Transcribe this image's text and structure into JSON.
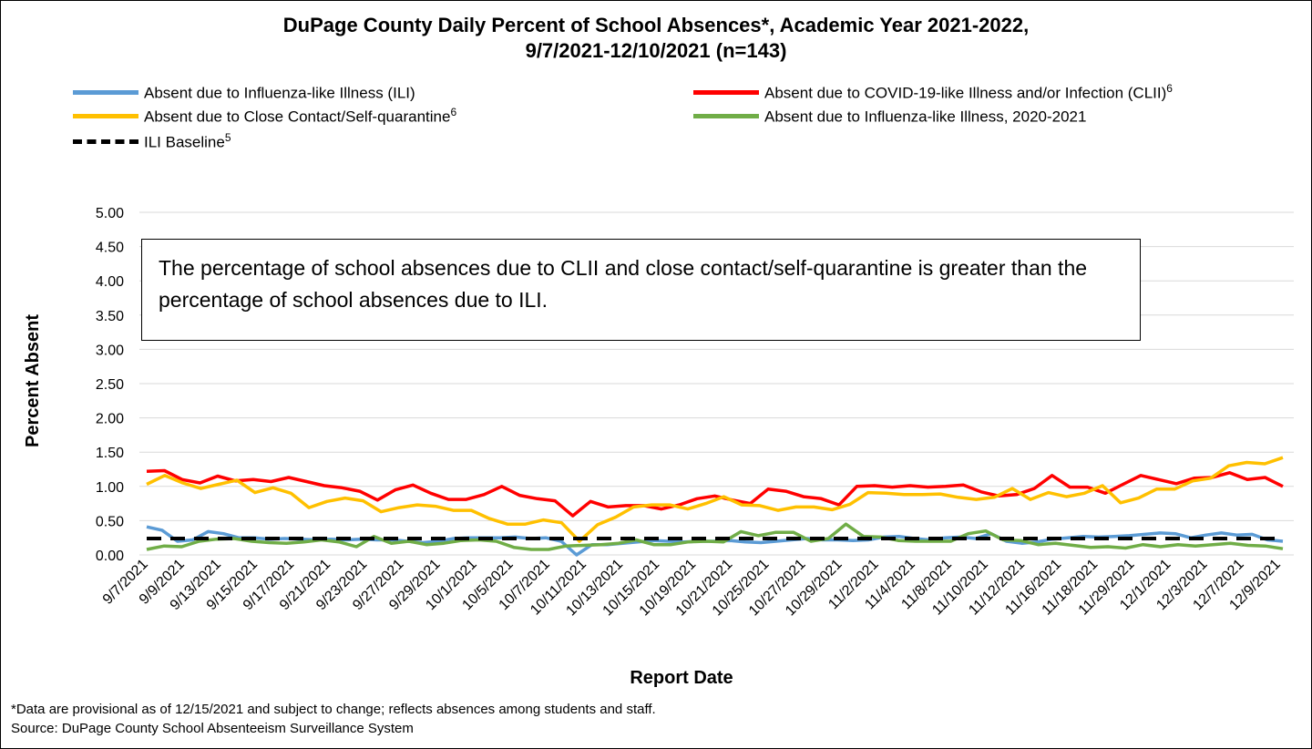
{
  "chart_data": {
    "type": "line",
    "title_line1": "DuPage County Daily Percent of School Absences*, Academic Year 2021-2022,",
    "title_line2": "9/7/2021-12/10/2021 (n=143)",
    "xlabel": "Report Date",
    "ylabel": "Percent Absent",
    "ylim": [
      0,
      5
    ],
    "y_ticks": [
      "0.00",
      "0.50",
      "1.00",
      "1.50",
      "2.00",
      "2.50",
      "3.00",
      "3.50",
      "4.00",
      "4.50",
      "5.00"
    ],
    "grid": true,
    "x_tick_labels": [
      "9/7/2021",
      "9/9/2021",
      "9/13/2021",
      "9/15/2021",
      "9/17/2021",
      "9/21/2021",
      "9/23/2021",
      "9/27/2021",
      "9/29/2021",
      "10/1/2021",
      "10/5/2021",
      "10/7/2021",
      "10/11/2021",
      "10/13/2021",
      "10/15/2021",
      "10/19/2021",
      "10/21/2021",
      "10/25/2021",
      "10/27/2021",
      "10/29/2021",
      "11/2/2021",
      "11/4/2021",
      "11/8/2021",
      "11/10/2021",
      "11/12/2021",
      "11/16/2021",
      "11/18/2021",
      "11/29/2021",
      "12/1/2021",
      "12/3/2021",
      "12/7/2021",
      "12/9/2021"
    ],
    "series": [
      {
        "name": "Absent due to Influenza-like Illness (ILI)",
        "superscript": "",
        "color": "#5b9bd5",
        "dash": false,
        "values": [
          0.41,
          0.36,
          0.2,
          0.22,
          0.34,
          0.31,
          0.25,
          0.25,
          0.23,
          0.24,
          0.23,
          0.22,
          0.23,
          0.22,
          0.23,
          0.22,
          0.22,
          0.2,
          0.18,
          0.2,
          0.24,
          0.25,
          0.25,
          0.25,
          0.26,
          0.24,
          0.25,
          0.2,
          0.0,
          0.15,
          0.15,
          0.17,
          0.19,
          0.21,
          0.2,
          0.19,
          0.2,
          0.2,
          0.21,
          0.19,
          0.18,
          0.2,
          0.22,
          0.24,
          0.22,
          0.22,
          0.21,
          0.22,
          0.26,
          0.27,
          0.24,
          0.22,
          0.25,
          0.26,
          0.24,
          0.31,
          0.2,
          0.17,
          0.19,
          0.23,
          0.25,
          0.27,
          0.26,
          0.27,
          0.28,
          0.3,
          0.32,
          0.31,
          0.25,
          0.29,
          0.32,
          0.29,
          0.3,
          0.22,
          0.2
        ]
      },
      {
        "name": "Absent due to COVID-19-like Illness and/or Infection (CLII)",
        "superscript": "6",
        "color": "#ff0000",
        "dash": false,
        "values": [
          1.22,
          1.23,
          1.1,
          1.05,
          1.15,
          1.08,
          1.1,
          1.07,
          1.13,
          1.07,
          1.01,
          0.98,
          0.93,
          0.8,
          0.95,
          1.02,
          0.9,
          0.81,
          0.81,
          0.88,
          1.0,
          0.87,
          0.82,
          0.79,
          0.57,
          0.78,
          0.7,
          0.72,
          0.72,
          0.67,
          0.73,
          0.82,
          0.86,
          0.8,
          0.75,
          0.96,
          0.93,
          0.85,
          0.82,
          0.73,
          1.0,
          1.01,
          0.99,
          1.01,
          0.99,
          1.0,
          1.02,
          0.92,
          0.86,
          0.88,
          0.97,
          1.16,
          0.99,
          0.99,
          0.9,
          1.03,
          1.16,
          1.1,
          1.04,
          1.12,
          1.13,
          1.2,
          1.1,
          1.13,
          1.0
        ]
      },
      {
        "name": "Absent due to Close Contact/Self-quarantine",
        "superscript": "6",
        "color": "#ffc000",
        "dash": false,
        "values": [
          1.03,
          1.16,
          1.05,
          0.97,
          1.03,
          1.09,
          0.91,
          0.98,
          0.9,
          0.69,
          0.78,
          0.83,
          0.79,
          0.63,
          0.69,
          0.73,
          0.71,
          0.65,
          0.65,
          0.53,
          0.45,
          0.45,
          0.51,
          0.47,
          0.2,
          0.44,
          0.55,
          0.7,
          0.73,
          0.73,
          0.67,
          0.75,
          0.85,
          0.73,
          0.72,
          0.65,
          0.7,
          0.7,
          0.66,
          0.74,
          0.91,
          0.9,
          0.88,
          0.88,
          0.89,
          0.84,
          0.81,
          0.84,
          0.97,
          0.81,
          0.91,
          0.85,
          0.9,
          1.01,
          0.76,
          0.83,
          0.96,
          0.96,
          1.08,
          1.12,
          1.3,
          1.35,
          1.33,
          1.42
        ]
      },
      {
        "name": "Absent due to Influenza-like Illness, 2020-2021",
        "superscript": "",
        "color": "#70ad47",
        "dash": false,
        "values": [
          0.08,
          0.13,
          0.12,
          0.2,
          0.23,
          0.24,
          0.2,
          0.18,
          0.17,
          0.19,
          0.22,
          0.19,
          0.12,
          0.27,
          0.17,
          0.2,
          0.15,
          0.17,
          0.21,
          0.22,
          0.2,
          0.11,
          0.08,
          0.08,
          0.13,
          0.14,
          0.15,
          0.17,
          0.22,
          0.15,
          0.15,
          0.19,
          0.2,
          0.19,
          0.34,
          0.28,
          0.33,
          0.33,
          0.2,
          0.24,
          0.45,
          0.27,
          0.26,
          0.21,
          0.2,
          0.2,
          0.2,
          0.31,
          0.35,
          0.22,
          0.21,
          0.15,
          0.17,
          0.14,
          0.11,
          0.12,
          0.1,
          0.15,
          0.12,
          0.15,
          0.13,
          0.15,
          0.17,
          0.14,
          0.13,
          0.09
        ]
      },
      {
        "name": "ILI Baseline",
        "superscript": "5",
        "color": "#000000",
        "dash": true,
        "values": [
          0.24,
          0.24
        ]
      }
    ],
    "callout": "The percentage of school absences due to CLII and close contact/self-quarantine is greater than the percentage of school absences due to ILI."
  },
  "footnotes": {
    "line1": "*Data are provisional as of 12/15/2021 and subject to change; reflects absences among students and staff.",
    "line2": "Source: DuPage County School Absenteeism Surveillance System"
  }
}
